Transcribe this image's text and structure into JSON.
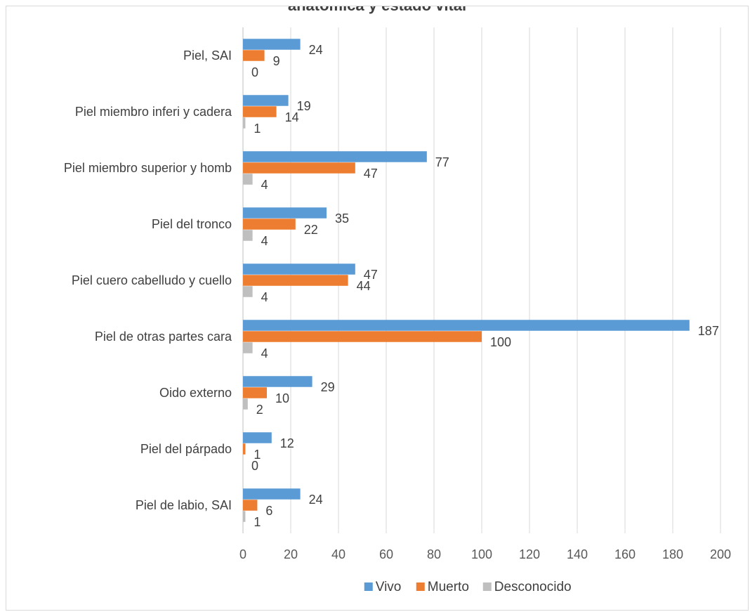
{
  "chart_data": {
    "type": "bar",
    "orientation": "horizontal",
    "title": "anatómica y estado vital",
    "categories": [
      "Piel, SAI",
      "Piel miembro inferi y cadera",
      "Piel miembro superior y homb",
      "Piel del tronco",
      "Piel cuero cabelludo y cuello",
      "Piel de otras partes cara",
      "Oido externo",
      "Piel del párpado",
      "Piel de labio, SAI"
    ],
    "series": [
      {
        "name": "Vivo",
        "color": "#5b9bd5",
        "values": [
          24,
          19,
          77,
          35,
          47,
          187,
          29,
          12,
          24
        ]
      },
      {
        "name": "Muerto",
        "color": "#ed7d31",
        "values": [
          9,
          14,
          47,
          22,
          44,
          100,
          10,
          1,
          6
        ]
      },
      {
        "name": "Desconocido",
        "color": "#bfbfbf",
        "values": [
          0,
          1,
          4,
          4,
          4,
          4,
          2,
          0,
          1
        ]
      }
    ],
    "xlim": [
      0,
      200
    ],
    "xticks": [
      0,
      20,
      40,
      60,
      80,
      100,
      120,
      140,
      160,
      180,
      200
    ],
    "grid": "vertical",
    "legend": "bottom"
  }
}
